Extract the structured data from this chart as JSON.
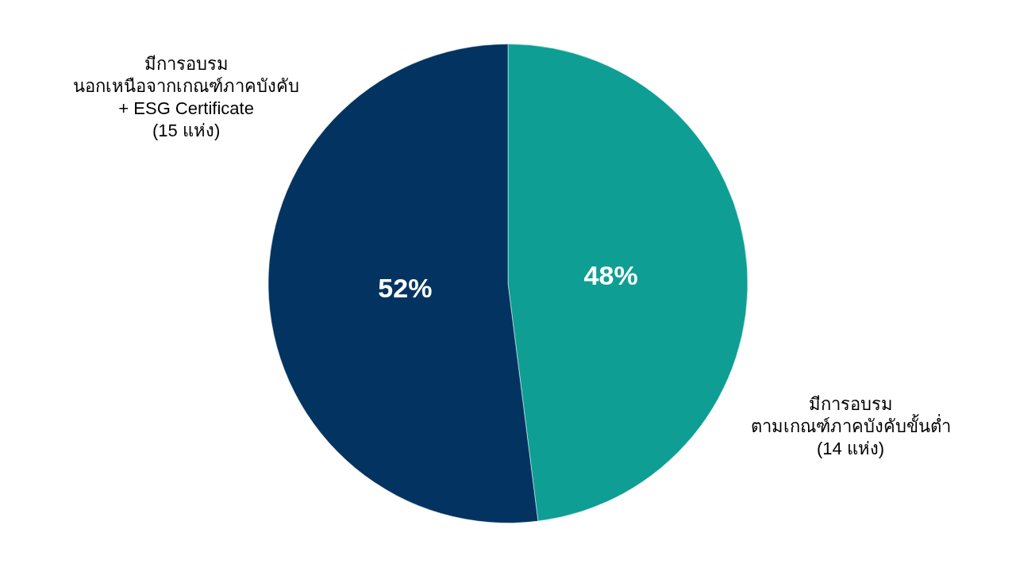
{
  "chart_data": {
    "type": "pie",
    "categories": [
      "มีการอบรม\nตามเกณฑ์ภาคบังคับขั้นต่ำ\n(14 แห่ง)",
      "มีการอบรม\nนอกเหนือจากเกณฑ์ภาคบังคับ\n+ ESG Certificate\n(15 แห่ง)"
    ],
    "values": [
      48,
      52
    ],
    "colors": [
      "#0e9e94",
      "#033461"
    ],
    "value_labels": [
      "48%",
      "52%"
    ],
    "legend": false
  }
}
